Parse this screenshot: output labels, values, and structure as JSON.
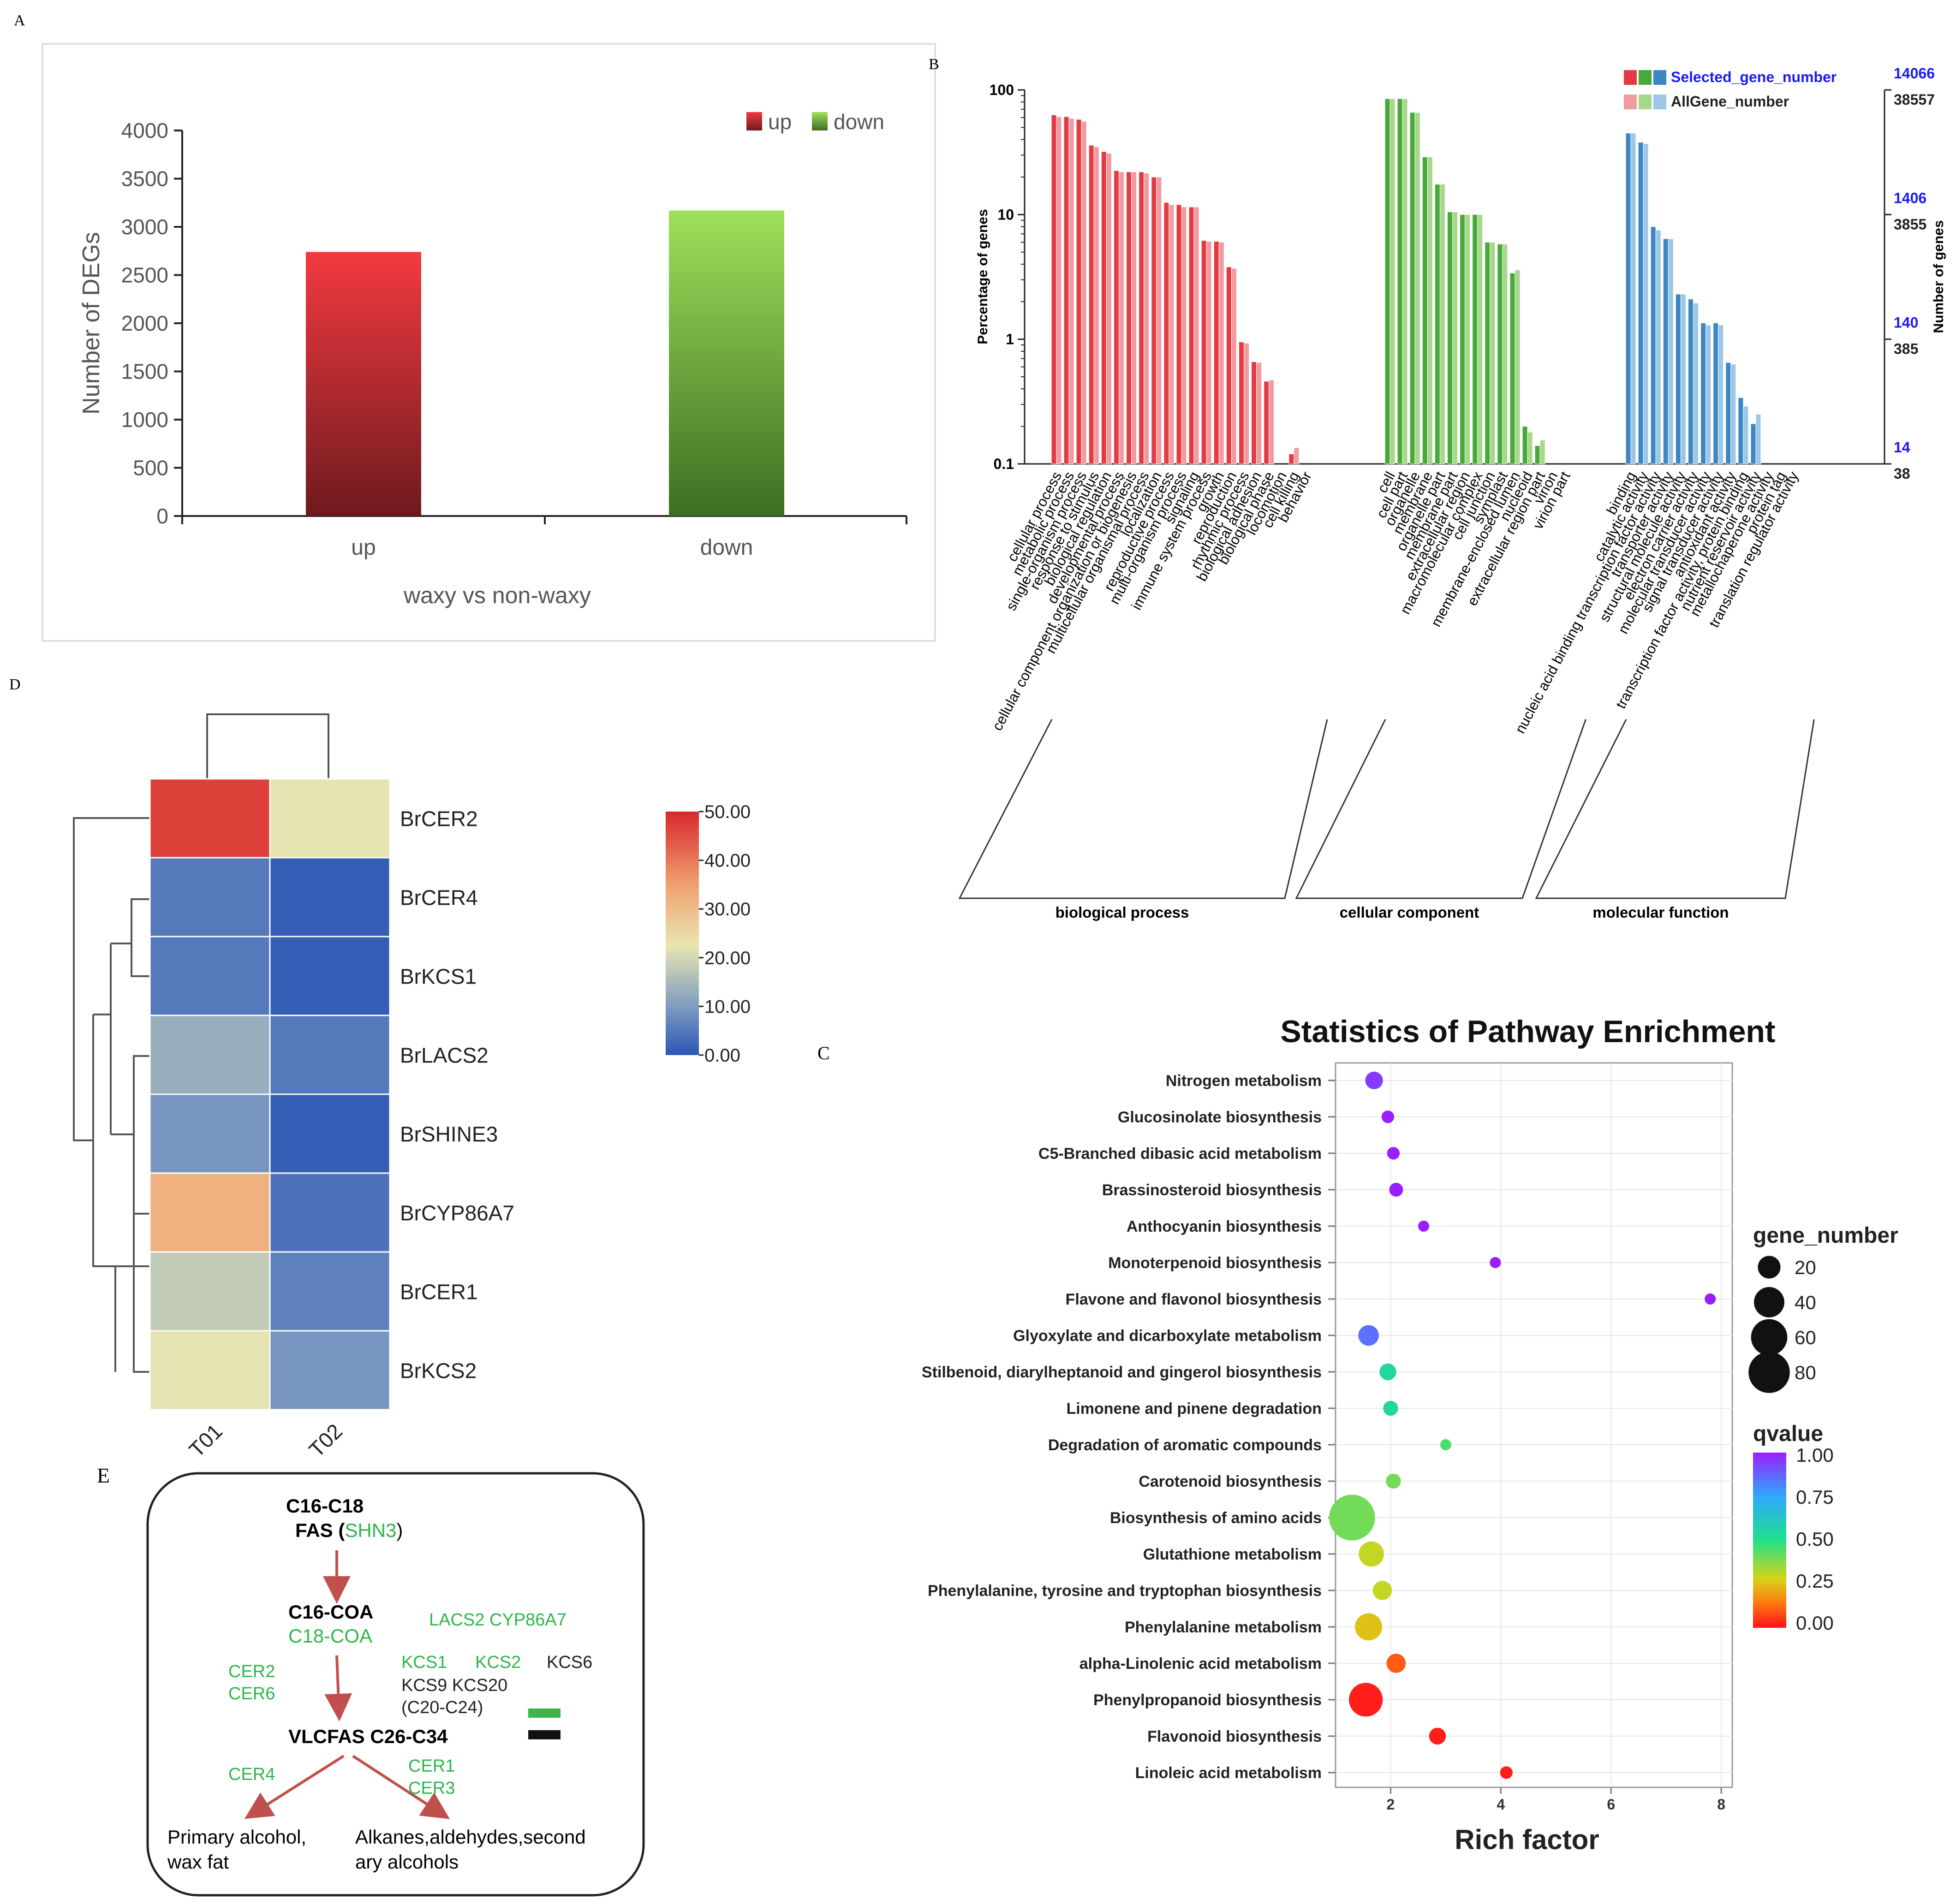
{
  "panel_labels": {
    "a": "A",
    "b": "B",
    "c": "C",
    "d": "D",
    "e": "E"
  },
  "colors": {
    "up": "#e8343a",
    "down": "#7fcf3f",
    "bp": "#e33b44",
    "cc": "#47a93a",
    "mf": "#3c86c4",
    "bp_light": "#f19aa0",
    "cc_light": "#a6d889",
    "mf_light": "#9cc7e6",
    "green_text": "#2fb54a"
  },
  "chart_data": [
    {
      "id": "A",
      "type": "bar",
      "categories": [
        "up",
        "down"
      ],
      "values": [
        2740,
        3170
      ],
      "ylabel": "Number of DEGs",
      "xlabel": "waxy vs non-waxy",
      "ylim": [
        0,
        4000
      ],
      "yticks": [
        "0",
        "500",
        "1000",
        "1500",
        "2000",
        "2500",
        "3000",
        "3500",
        "4000"
      ],
      "legend": [
        {
          "name": "up"
        },
        {
          "name": "down"
        }
      ],
      "legend_position": "top-right"
    },
    {
      "id": "B",
      "type": "bar",
      "ylabel": "Percentage of genes",
      "ylabel_right": "Number of genes",
      "yscale": "log",
      "ylim": [
        0.1,
        100
      ],
      "yticks_left": [
        "0.1",
        "1",
        "10",
        "100"
      ],
      "yticks_right_selected": [
        "14",
        "140",
        "1406",
        "14066"
      ],
      "yticks_right_all": [
        "38",
        "385",
        "3855",
        "38557"
      ],
      "legend": [
        {
          "name": "Selected_gene_number"
        },
        {
          "name": "AllGene_number"
        }
      ],
      "legend_position": "top-right",
      "groups": [
        {
          "name": "biological process",
          "key": "bp",
          "terms": [
            {
              "label": "cellular process",
              "selected": 63,
              "all": 61
            },
            {
              "label": "metabolic process",
              "selected": 61,
              "all": 59
            },
            {
              "label": "single-organism process",
              "selected": 58,
              "all": 56
            },
            {
              "label": "response to stimulus",
              "selected": 36,
              "all": 35
            },
            {
              "label": "biological regulation",
              "selected": 32,
              "all": 31
            },
            {
              "label": "developmental process",
              "selected": 22.5,
              "all": 22
            },
            {
              "label": "cellular component organization or biogenesis",
              "selected": 22,
              "all": 22
            },
            {
              "label": "multicellular organismal process",
              "selected": 22,
              "all": 21.5
            },
            {
              "label": "localization",
              "selected": 20,
              "all": 20
            },
            {
              "label": "reproductive process",
              "selected": 12.5,
              "all": 12
            },
            {
              "label": "multi-organism process",
              "selected": 12,
              "all": 11.5
            },
            {
              "label": "signaling",
              "selected": 11.5,
              "all": 11.5
            },
            {
              "label": "immune system process",
              "selected": 6.2,
              "all": 6.1
            },
            {
              "label": "growth",
              "selected": 6.1,
              "all": 6.0
            },
            {
              "label": "reproduction",
              "selected": 3.8,
              "all": 3.7
            },
            {
              "label": "rhythmic process",
              "selected": 0.95,
              "all": 0.93
            },
            {
              "label": "biological adhesion",
              "selected": 0.66,
              "all": 0.65
            },
            {
              "label": "biological phase",
              "selected": 0.46,
              "all": 0.47
            },
            {
              "label": "locomotion",
              "selected": 0.1,
              "all": 0.1
            },
            {
              "label": "cell killing",
              "selected": 0.12,
              "all": 0.135
            },
            {
              "label": "behavior",
              "selected": 0.1,
              "all": 0.1
            }
          ]
        },
        {
          "name": "cellular component",
          "key": "cc",
          "terms": [
            {
              "label": "cell",
              "selected": 85,
              "all": 85
            },
            {
              "label": "cell part",
              "selected": 85,
              "all": 85
            },
            {
              "label": "organelle",
              "selected": 66,
              "all": 66
            },
            {
              "label": "membrane",
              "selected": 29,
              "all": 29
            },
            {
              "label": "organelle part",
              "selected": 17.5,
              "all": 17.5
            },
            {
              "label": "membrane part",
              "selected": 10.5,
              "all": 10.5
            },
            {
              "label": "extracellular region",
              "selected": 10,
              "all": 10
            },
            {
              "label": "macromolecular complex",
              "selected": 10,
              "all": 10
            },
            {
              "label": "cell junction",
              "selected": 6,
              "all": 6
            },
            {
              "label": "symplast",
              "selected": 5.8,
              "all": 5.8
            },
            {
              "label": "membrane-enclosed lumen",
              "selected": 3.4,
              "all": 3.6
            },
            {
              "label": "nucleoid",
              "selected": 0.2,
              "all": 0.18
            },
            {
              "label": "extracellular region part",
              "selected": 0.14,
              "all": 0.155
            },
            {
              "label": "virion",
              "selected": 0.1,
              "all": 0.1
            },
            {
              "label": "virion part",
              "selected": 0.1,
              "all": 0.1
            }
          ]
        },
        {
          "name": "molecular function",
          "key": "mf",
          "terms": [
            {
              "label": "binding",
              "selected": 45,
              "all": 45
            },
            {
              "label": "catalytic activity",
              "selected": 38,
              "all": 37
            },
            {
              "label": "nucleic acid binding transcription factor activity",
              "selected": 8,
              "all": 7.5
            },
            {
              "label": "transporter activity",
              "selected": 6.4,
              "all": 6.4
            },
            {
              "label": "structural molecule activity",
              "selected": 2.3,
              "all": 2.3
            },
            {
              "label": "electron carrier activity",
              "selected": 2.1,
              "all": 1.95
            },
            {
              "label": "molecular transducer activity",
              "selected": 1.35,
              "all": 1.3
            },
            {
              "label": "signal transducer activity",
              "selected": 1.35,
              "all": 1.3
            },
            {
              "label": "antioxidant activity",
              "selected": 0.65,
              "all": 0.63
            },
            {
              "label": "transcription factor activity, protein binding",
              "selected": 0.34,
              "all": 0.29
            },
            {
              "label": "nutrient reservoir activity",
              "selected": 0.21,
              "all": 0.25
            },
            {
              "label": "metallochaperone activity",
              "selected": 0.1,
              "all": 0.1
            },
            {
              "label": "protein tag",
              "selected": 0.1,
              "all": 0.1
            },
            {
              "label": "translation regulator activity",
              "selected": 0.1,
              "all": 0.1
            }
          ]
        }
      ]
    },
    {
      "id": "C",
      "type": "scatter",
      "title": "Statistics of Pathway Enrichment",
      "xlabel": "Rich factor",
      "xlim": [
        1,
        8.2
      ],
      "xticks": [
        2,
        4,
        6,
        8
      ],
      "size_legend_title": "gene_number",
      "size_legend": [
        20,
        40,
        60,
        80
      ],
      "color_legend_title": "qvalue",
      "color_legend": [
        "1.00",
        "0.75",
        "0.50",
        "0.25",
        "0.00"
      ],
      "points": [
        {
          "pathway": "Nitrogen metabolism",
          "rich": 1.7,
          "genes": 8,
          "q": 0.95
        },
        {
          "pathway": "Glucosinolate biosynthesis",
          "rich": 1.95,
          "genes": 3,
          "q": 1.0
        },
        {
          "pathway": "C5-Branched dibasic acid metabolism",
          "rich": 2.05,
          "genes": 3,
          "q": 1.0
        },
        {
          "pathway": "Brassinosteroid biosynthesis",
          "rich": 2.1,
          "genes": 4,
          "q": 1.0
        },
        {
          "pathway": "Anthocyanin biosynthesis",
          "rich": 2.6,
          "genes": 2,
          "q": 1.0
        },
        {
          "pathway": "Monoterpenoid biosynthesis",
          "rich": 3.9,
          "genes": 2,
          "q": 1.0
        },
        {
          "pathway": "Flavone and flavonol biosynthesis",
          "rich": 7.8,
          "genes": 2,
          "q": 1.0
        },
        {
          "pathway": "Glyoxylate and dicarboxylate metabolism",
          "rich": 1.6,
          "genes": 12,
          "q": 0.85
        },
        {
          "pathway": "Stilbenoid, diarylheptanoid and gingerol biosynthesis",
          "rich": 1.95,
          "genes": 7,
          "q": 0.55
        },
        {
          "pathway": "Limonene and pinene degradation",
          "rich": 2.0,
          "genes": 5,
          "q": 0.55
        },
        {
          "pathway": "Degradation of aromatic compounds",
          "rich": 3.0,
          "genes": 2,
          "q": 0.45
        },
        {
          "pathway": "Carotenoid biosynthesis",
          "rich": 2.05,
          "genes": 5,
          "q": 0.4
        },
        {
          "pathway": "Biosynthesis of amino acids",
          "rich": 1.3,
          "genes": 80,
          "q": 0.4
        },
        {
          "pathway": "Glutathione metabolism",
          "rich": 1.65,
          "genes": 20,
          "q": 0.3
        },
        {
          "pathway": "Phenylalanine, tyrosine and tryptophan biosynthesis",
          "rich": 1.85,
          "genes": 10,
          "q": 0.3
        },
        {
          "pathway": "Phenylalanine metabolism",
          "rich": 1.6,
          "genes": 24,
          "q": 0.25
        },
        {
          "pathway": "alpha-Linolenic acid metabolism",
          "rich": 2.1,
          "genes": 10,
          "q": 0.1
        },
        {
          "pathway": "Phenylpropanoid biosynthesis",
          "rich": 1.55,
          "genes": 40,
          "q": 0.02
        },
        {
          "pathway": "Flavonoid biosynthesis",
          "rich": 2.85,
          "genes": 7,
          "q": 0.02
        },
        {
          "pathway": "Linoleic acid metabolism",
          "rich": 4.1,
          "genes": 3,
          "q": 0.02
        }
      ]
    },
    {
      "id": "D",
      "type": "heatmap",
      "columns": [
        "T01",
        "T02"
      ],
      "rows": [
        "BrCER2",
        "BrCER4",
        "BrKCS1",
        "BrLACS2",
        "BrSHINE3",
        "BrCYP86A7",
        "BrCER1",
        "BrKCS2"
      ],
      "values": [
        [
          47,
          22
        ],
        [
          5,
          1
        ],
        [
          5,
          1
        ],
        [
          13,
          5
        ],
        [
          9,
          1
        ],
        [
          32,
          4
        ],
        [
          18,
          6
        ],
        [
          22,
          9
        ]
      ],
      "scale_range": [
        0,
        50
      ],
      "scale_ticks": [
        "50.00",
        "40.00",
        "30.00",
        "20.00",
        "10.00",
        "0.00"
      ]
    }
  ],
  "pathway": {
    "n1_line1": "C16-C18",
    "n1_fas": "FAS (",
    "n1_shn3": "SHN3",
    "n1_close": ")",
    "n2_line1": "C16-COA",
    "n2_line2": "C18-COA",
    "lacs2_cyp": "LACS2 CYP86A7",
    "cer2": "CER2",
    "cer6": "CER6",
    "kcs1": "KCS1",
    "kcs2": "KCS2",
    "kcs6": "KCS6",
    "kcs9_20": "KCS9 KCS20",
    "c20_c24": "(C20-C24)",
    "vlcfas": "VLCFAS C26-C34",
    "cer4": "CER4",
    "cer1": "CER1",
    "cer3": "CER3",
    "out1_l1": "Primary  alcohol,",
    "out1_l2": "wax fat",
    "out2_l1": "Alkanes,aldehydes,second",
    "out2_l2": "ary alcohols"
  }
}
